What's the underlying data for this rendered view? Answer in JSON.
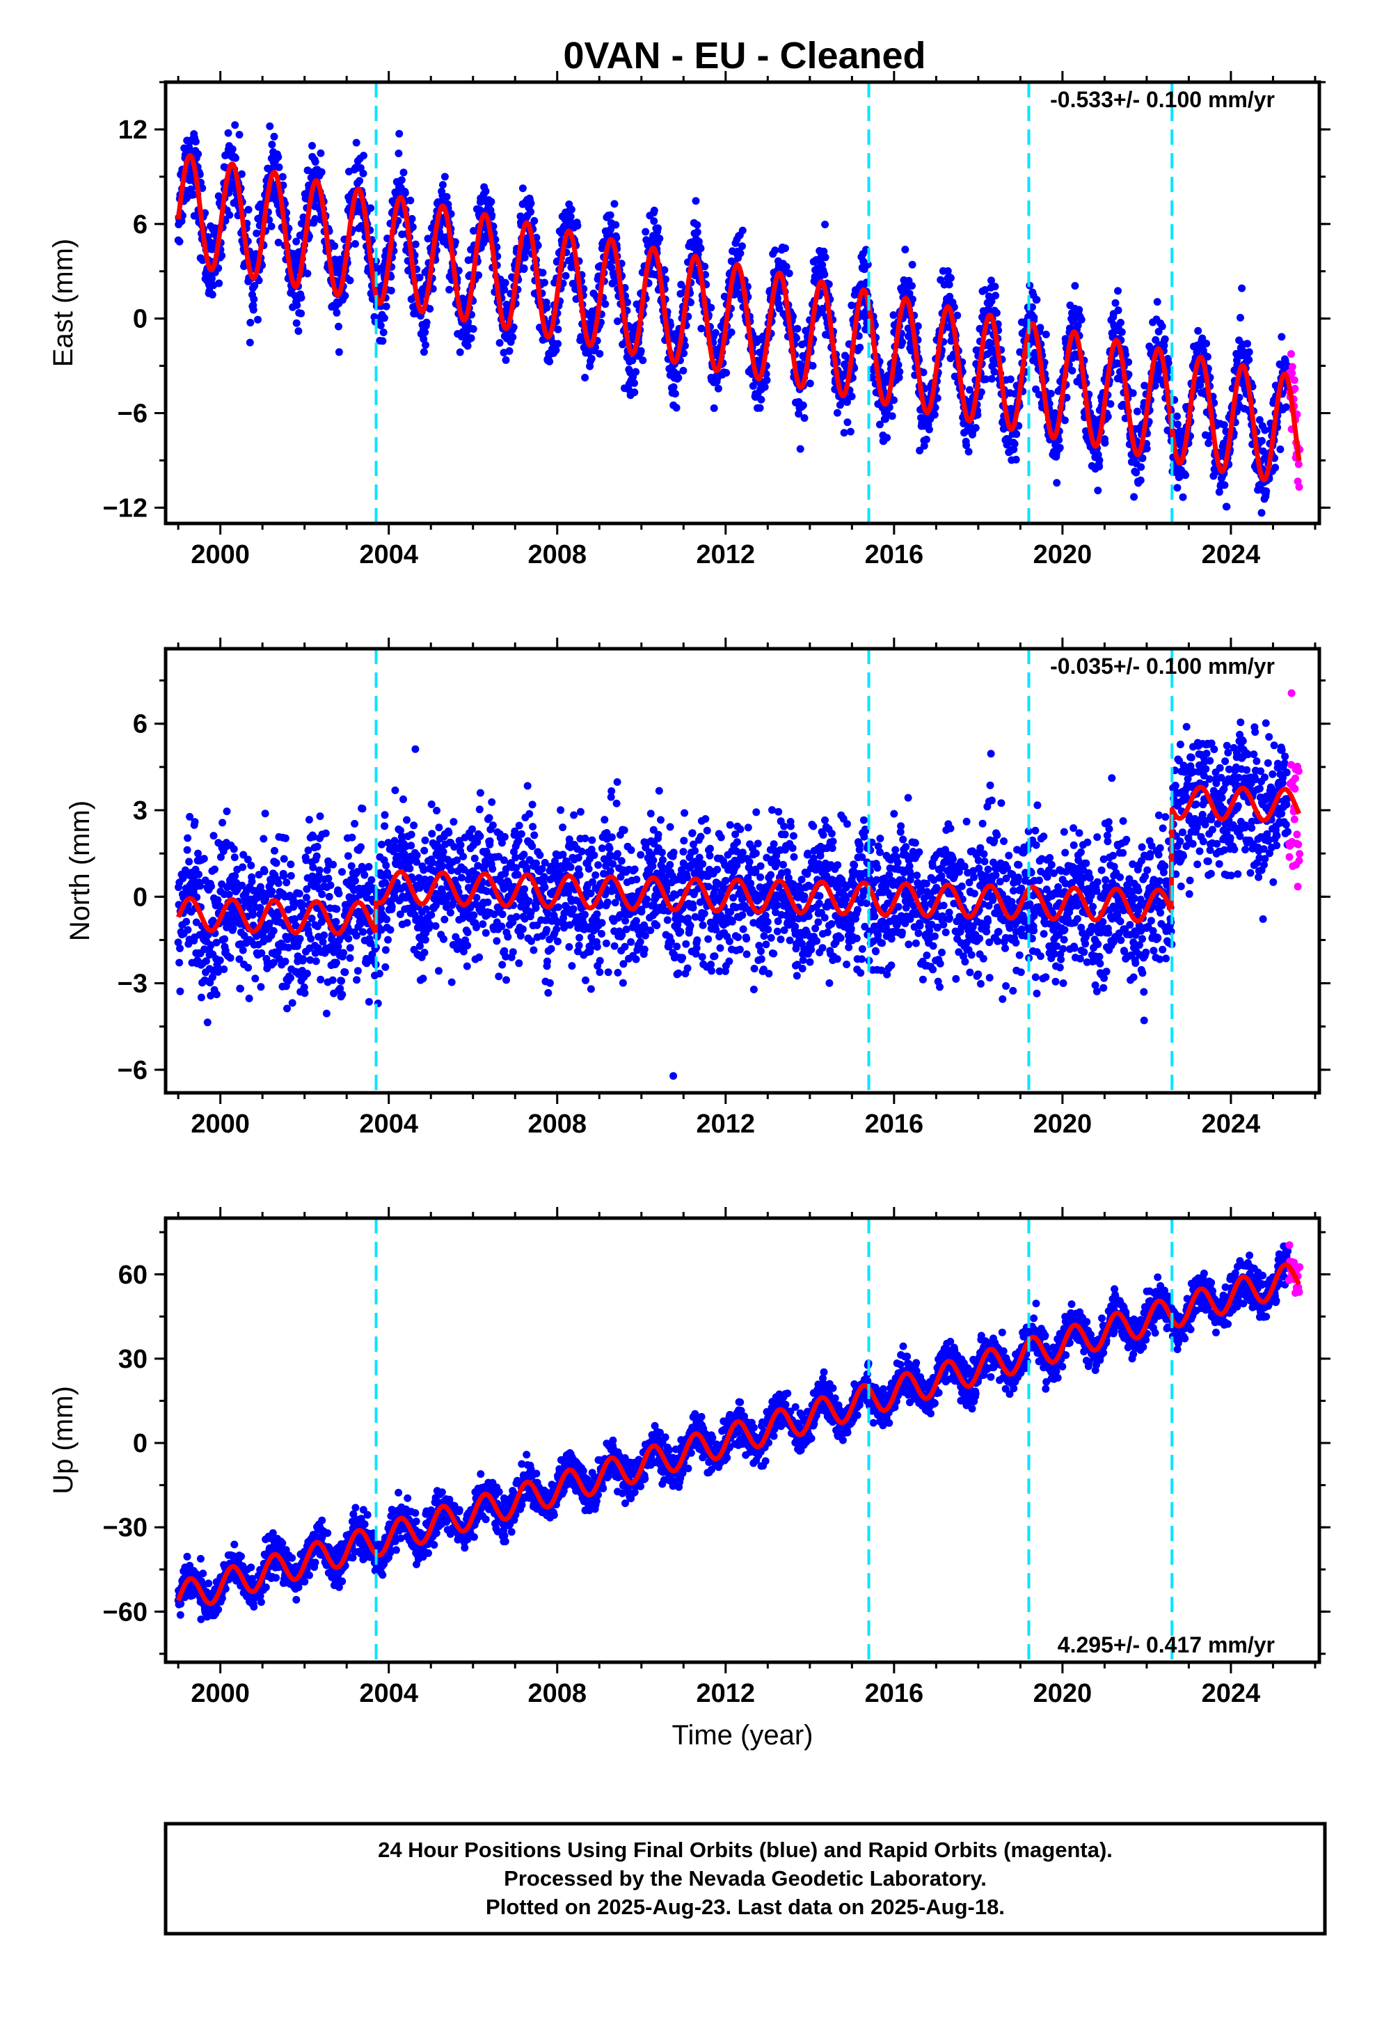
{
  "title": "0VAN  - EU - Cleaned",
  "colors": {
    "final": "#0000ff",
    "rapid": "#ff00ff",
    "model": "#ff0000",
    "equipment_change": "#00e5ff"
  },
  "footer": {
    "line1": "24 Hour Positions Using Final Orbits (blue) and Rapid Orbits (magenta).",
    "line2": "Processed by the Nevada Geodetic Laboratory.",
    "line3": "Plotted on 2025-Aug-23. Last data on 2025-Aug-18."
  },
  "chart_data": [
    {
      "type": "scatter",
      "title": "",
      "ylabel": "East (mm)",
      "xlabel": "",
      "rate": "-0.533+/- 0.100 mm/yr",
      "xlim": [
        1998.7,
        2026.1
      ],
      "ylim": [
        -13,
        15
      ],
      "xticks": [
        "2000",
        "2004",
        "2008",
        "2012",
        "2016",
        "2020",
        "2024"
      ],
      "yticks": [
        "12",
        "6",
        "0",
        "−6",
        "−12"
      ],
      "event_lines": [
        2003.7,
        2015.4,
        2019.2,
        2022.6
      ],
      "model": {
        "start_value": 7.0,
        "rate": -0.533,
        "annual_amplitude": 3.5,
        "noise": 1.3,
        "offsets": []
      }
    },
    {
      "type": "scatter",
      "title": "",
      "ylabel": "North (mm)",
      "xlabel": "",
      "rate": "-0.035+/- 0.100 mm/yr",
      "xlim": [
        1998.7,
        2026.1
      ],
      "ylim": [
        -6.8,
        8.6
      ],
      "xticks": [
        "2000",
        "2004",
        "2008",
        "2012",
        "2016",
        "2020",
        "2024"
      ],
      "yticks": [
        "6",
        "3",
        "0",
        "−3",
        "−6"
      ],
      "event_lines": [
        2003.7,
        2015.4,
        2019.2,
        2022.6
      ],
      "model": {
        "start_value": -0.6,
        "rate": -0.035,
        "annual_amplitude": 0.55,
        "noise": 1.2,
        "offsets": [
          {
            "year": 2003.7,
            "size": 1.1
          },
          {
            "year": 2022.6,
            "size": 3.6
          }
        ]
      }
    },
    {
      "type": "scatter",
      "title": "",
      "ylabel": "Up (mm)",
      "xlabel": "Time (year)",
      "rate": "4.295+/- 0.417 mm/yr",
      "xlim": [
        1998.7,
        2026.1
      ],
      "ylim": [
        -78,
        80
      ],
      "xticks": [
        "2000",
        "2004",
        "2008",
        "2012",
        "2016",
        "2020",
        "2024"
      ],
      "yticks": [
        "60",
        "30",
        "0",
        "−30",
        "−60"
      ],
      "event_lines": [
        2003.7,
        2015.4,
        2019.2,
        2022.6
      ],
      "model": {
        "start_value": -55,
        "rate": 4.295,
        "annual_amplitude": 5.5,
        "noise": 3.5,
        "offsets": []
      }
    }
  ]
}
